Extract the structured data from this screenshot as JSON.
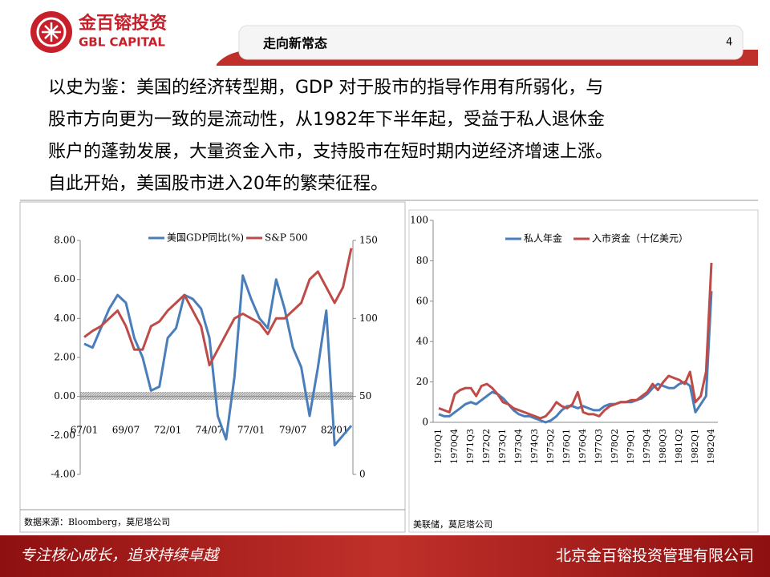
{
  "logo": {
    "name": "金百镕投资",
    "english": "GBL CAPITAL"
  },
  "header": {
    "title": "走向新常态",
    "page": "4"
  },
  "body": {
    "lines": [
      "以史为鉴：美国的经济转型期，GDP 对于股市的指导作用有所弱化，与",
      "股市方向更为一致的是流动性，从1982年下半年起，受益于私人退休金",
      "账户的蓬勃发展，大量资金入市，支持股市在短时期内逆经济增速上涨。",
      "自此开始，美国股市进入20年的繁荣征程。"
    ]
  },
  "chart_data": [
    {
      "type": "line",
      "source": "数据来源：Bloomberg，莫尼塔公司",
      "categories": [
        "67/01",
        null,
        null,
        null,
        null,
        "69/07",
        null,
        null,
        null,
        null,
        "72/01",
        null,
        null,
        null,
        null,
        "74/07",
        null,
        null,
        null,
        null,
        "77/01",
        null,
        null,
        null,
        null,
        "79/07",
        null,
        null,
        null,
        null,
        "82/01",
        null,
        null
      ],
      "series": [
        {
          "name": "美国GDP同比(%)",
          "color": "#4a7ebb",
          "values": [
            2.7,
            2.5,
            3.5,
            4.5,
            5.2,
            4.8,
            3.0,
            2.0,
            0.3,
            0.5,
            3.0,
            3.5,
            5.2,
            5.0,
            4.5,
            3.0,
            -1.0,
            -2.2,
            1.0,
            6.2,
            5.0,
            4.0,
            3.5,
            6.0,
            4.5,
            2.5,
            1.5,
            -1.0,
            1.5,
            4.4,
            -2.5,
            -2.0,
            -1.5
          ]
        },
        {
          "name": "S&P 500",
          "color": "#be4b48",
          "axis": "y2",
          "values": [
            88,
            92,
            95,
            100,
            105,
            95,
            80,
            80,
            95,
            98,
            105,
            110,
            115,
            105,
            95,
            70,
            80,
            90,
            100,
            103,
            100,
            97,
            90,
            100,
            100,
            105,
            110,
            125,
            130,
            120,
            110,
            120,
            145
          ]
        }
      ],
      "ylim": [
        -4,
        8
      ],
      "yticks": [
        {
          "value": -4,
          "label": "-4.00"
        },
        {
          "value": -2,
          "label": "-2.00"
        },
        {
          "value": 0,
          "label": "0.00"
        },
        {
          "value": 2,
          "label": "2.00"
        },
        {
          "value": 4,
          "label": "4.00"
        },
        {
          "value": 6,
          "label": "6.00"
        },
        {
          "value": 8,
          "label": "8.00"
        }
      ],
      "y2lim": [
        0,
        150
      ],
      "y2ticks": [
        0,
        50,
        100,
        150
      ]
    },
    {
      "type": "line",
      "source": "美联储，莫尼塔公司",
      "categories": [
        "1970Q1",
        null,
        null,
        "1970Q4",
        null,
        null,
        "1971Q3",
        null,
        null,
        "1972Q2",
        null,
        null,
        "1973Q1",
        null,
        null,
        "1973Q4",
        null,
        null,
        "1974Q3",
        null,
        null,
        "1975Q2",
        null,
        null,
        "1976Q1",
        null,
        null,
        "1976Q4",
        null,
        null,
        "1977Q3",
        null,
        null,
        "1978Q2",
        null,
        null,
        "1979Q1",
        null,
        null,
        "1979Q4",
        null,
        null,
        "1980Q3",
        null,
        null,
        "1981Q2",
        null,
        null,
        "1982Q1",
        null,
        null,
        "1982Q4"
      ],
      "series": [
        {
          "name": "私人年金",
          "color": "#4a7ebb",
          "values": [
            4,
            3,
            3,
            5,
            7,
            9,
            10,
            9,
            11,
            13,
            15,
            14,
            12,
            9,
            6,
            4,
            3,
            3,
            2,
            1,
            0,
            1,
            3,
            6,
            8,
            8,
            7,
            8,
            7,
            6,
            6,
            8,
            9,
            9,
            10,
            10,
            10,
            11,
            12,
            14,
            17,
            19,
            18,
            17,
            17,
            19,
            20,
            18,
            5,
            9,
            13,
            65
          ]
        },
        {
          "name": "入市资金（十亿美元）",
          "color": "#be4b48",
          "values": [
            7,
            6,
            5,
            14,
            16,
            17,
            17,
            13,
            18,
            19,
            17,
            14,
            10,
            9,
            7,
            6,
            5,
            4,
            3,
            2,
            3,
            6,
            10,
            8,
            7,
            9,
            15,
            5,
            4,
            4,
            3,
            6,
            8,
            9,
            10,
            10,
            11,
            11,
            13,
            15,
            19,
            16,
            20,
            23,
            22,
            21,
            19,
            25,
            10,
            13,
            25,
            79
          ]
        }
      ],
      "ylim": [
        0,
        100
      ],
      "yticks": [
        0,
        20,
        40,
        60,
        80,
        100
      ]
    }
  ],
  "footer": {
    "slogan": "专注核心成长，追求持续卓越",
    "company": "北京金百镕投资管理有限公司"
  }
}
